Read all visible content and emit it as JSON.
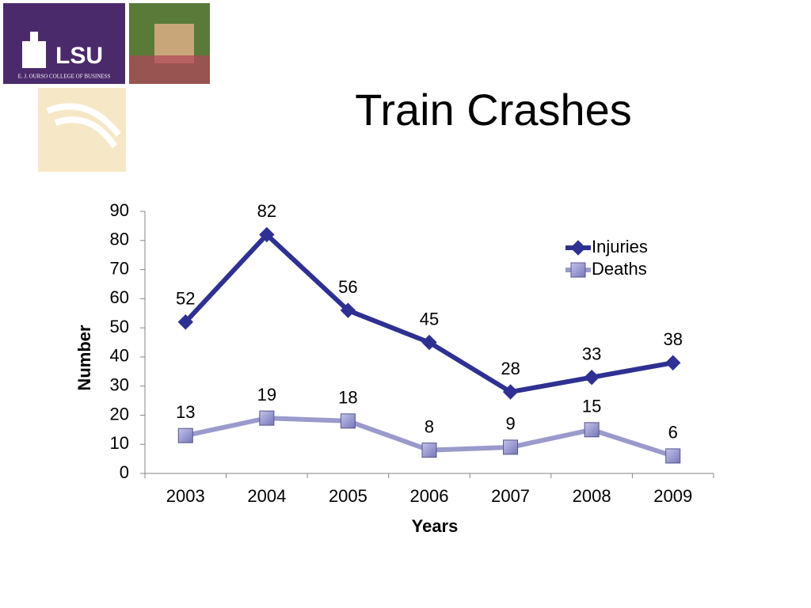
{
  "logo": {
    "name": "LSU",
    "subtitle": "E. J. OURSO COLLEGE OF BUSINESS"
  },
  "chart_data": {
    "type": "line",
    "title": "Train Crashes",
    "xlabel": "Years",
    "ylabel": "Number",
    "categories": [
      "2003",
      "2004",
      "2005",
      "2006",
      "2007",
      "2008",
      "2009"
    ],
    "series": [
      {
        "name": "Injuries",
        "color": "#2e3192",
        "marker": "diamond",
        "values": [
          52,
          82,
          56,
          45,
          28,
          33,
          38
        ]
      },
      {
        "name": "Deaths",
        "color": "#9a9acc",
        "marker": "square",
        "values": [
          13,
          19,
          18,
          8,
          9,
          15,
          6
        ]
      }
    ],
    "ylim": [
      0,
      90
    ],
    "yticks": [
      0,
      10,
      20,
      30,
      40,
      50,
      60,
      70,
      80,
      90
    ],
    "grid": false,
    "legend": "top-right"
  }
}
